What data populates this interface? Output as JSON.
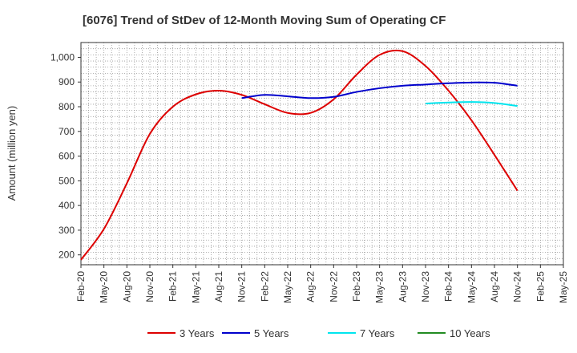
{
  "chart_data": {
    "type": "line",
    "title": "[6076]  Trend of StDev of 12-Month Moving Sum of Operating CF",
    "ylabel": "Amount (million yen)",
    "xlabel": "",
    "ylim": [
      160,
      1060
    ],
    "y_ticks": [
      200,
      300,
      400,
      500,
      600,
      700,
      800,
      900,
      1000
    ],
    "y_tick_labels": [
      "200",
      "300",
      "400",
      "500",
      "600",
      "700",
      "800",
      "900",
      "1,000"
    ],
    "x_tick_labels": [
      "Feb-20",
      "May-20",
      "Aug-20",
      "Nov-20",
      "Feb-21",
      "May-21",
      "Aug-21",
      "Nov-21",
      "Feb-22",
      "May-22",
      "Aug-22",
      "Nov-22",
      "Feb-23",
      "May-23",
      "Aug-23",
      "Nov-23",
      "Feb-24",
      "May-24",
      "Aug-24",
      "Nov-24",
      "Feb-25",
      "May-25"
    ],
    "grid": true,
    "legend_position": "bottom",
    "series": [
      {
        "name": "3 Years",
        "color": "#dd0000",
        "points": [
          [
            "Feb-20",
            180
          ],
          [
            "May-20",
            305
          ],
          [
            "Aug-20",
            490
          ],
          [
            "Nov-20",
            690
          ],
          [
            "Feb-21",
            800
          ],
          [
            "May-21",
            850
          ],
          [
            "Aug-21",
            865
          ],
          [
            "Nov-21",
            848
          ],
          [
            "Feb-22",
            810
          ],
          [
            "May-22",
            775
          ],
          [
            "Aug-22",
            775
          ],
          [
            "Nov-22",
            830
          ],
          [
            "Feb-23",
            930
          ],
          [
            "May-23",
            1010
          ],
          [
            "Aug-23",
            1025
          ],
          [
            "Nov-23",
            965
          ],
          [
            "Feb-24",
            865
          ],
          [
            "May-24",
            745
          ],
          [
            "Aug-24",
            605
          ],
          [
            "Nov-24",
            460
          ]
        ]
      },
      {
        "name": "5 Years",
        "color": "#0000cc",
        "points": [
          [
            "Nov-21",
            835
          ],
          [
            "Feb-22",
            848
          ],
          [
            "May-22",
            842
          ],
          [
            "Aug-22",
            835
          ],
          [
            "Nov-22",
            840
          ],
          [
            "Feb-23",
            860
          ],
          [
            "May-23",
            875
          ],
          [
            "Aug-23",
            885
          ],
          [
            "Nov-23",
            890
          ],
          [
            "Feb-24",
            895
          ],
          [
            "May-24",
            898
          ],
          [
            "Aug-24",
            897
          ],
          [
            "Nov-24",
            885
          ]
        ]
      },
      {
        "name": "7 Years",
        "color": "#00e5ee",
        "points": [
          [
            "Nov-23",
            813
          ],
          [
            "Feb-24",
            817
          ],
          [
            "May-24",
            819
          ],
          [
            "Aug-24",
            815
          ],
          [
            "Nov-24",
            803
          ]
        ]
      },
      {
        "name": "10 Years",
        "color": "#228b22",
        "points": []
      }
    ]
  }
}
